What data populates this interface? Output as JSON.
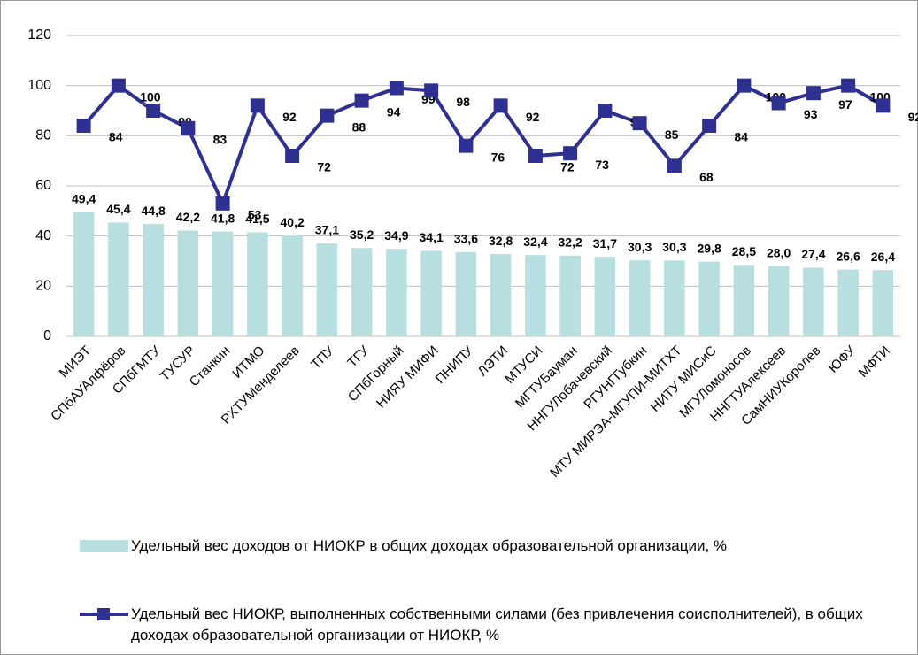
{
  "chart_data": {
    "type": "bar",
    "categories": [
      "МИЭТ",
      "СПбАУАлфёров",
      "СПбГМТУ",
      "ТУСУР",
      "Станкин",
      "ИТМО",
      "РХТУМенделеев",
      "ТПУ",
      "ТГУ",
      "СПбГорный",
      "НИЯУ МИФИ",
      "ПНИПУ",
      "ЛЭТИ",
      "МТУСИ",
      "МГТУБауман",
      "ННГУЛобачевский",
      "РГУНГГубкин",
      "МТУ МИРЭА-МГУПИ-МИТХТ",
      "НИТУ МИСиС",
      "МГУЛомоносов",
      "ННГТУАлексеев",
      "СамНИУКоролев",
      "ЮФУ",
      "МФТИ"
    ],
    "series": [
      {
        "name": "Удельный вес доходов от НИОКР в общих доходах образовательной организации, %",
        "type": "bar",
        "color": "#b7dfe0",
        "values": [
          49.4,
          45.4,
          44.8,
          42.2,
          41.8,
          41.5,
          40.2,
          37.1,
          35.2,
          34.9,
          34.1,
          33.6,
          32.8,
          32.4,
          32.2,
          31.7,
          30.3,
          30.3,
          29.8,
          28.5,
          28.0,
          27.4,
          26.6,
          26.4
        ],
        "value_labels": [
          "49,4",
          "45,4",
          "44,8",
          "42,2",
          "41,8",
          "41,5",
          "40,2",
          "37,1",
          "35,2",
          "34,9",
          "34,1",
          "33,6",
          "32,8",
          "32,4",
          "32,2",
          "31,7",
          "30,3",
          "30,3",
          "29,8",
          "28,5",
          "28,0",
          "27,4",
          "26,6",
          "26,4"
        ]
      },
      {
        "name": "Удельный вес НИОКР, выполненных собственными силами (без привлечения соисполнителей), в общих доходах образовательной организации от НИОКР, %",
        "type": "line",
        "color": "#2e3192",
        "values": [
          84,
          100,
          90,
          83,
          53,
          92,
          72,
          88,
          94,
          99,
          98,
          76,
          92,
          72,
          73,
          90,
          85,
          68,
          84,
          100,
          93,
          97,
          100,
          92
        ]
      }
    ],
    "ylim": [
      0,
      120
    ],
    "yticks": [
      0,
      20,
      40,
      60,
      80,
      100,
      120
    ],
    "grid": true
  }
}
